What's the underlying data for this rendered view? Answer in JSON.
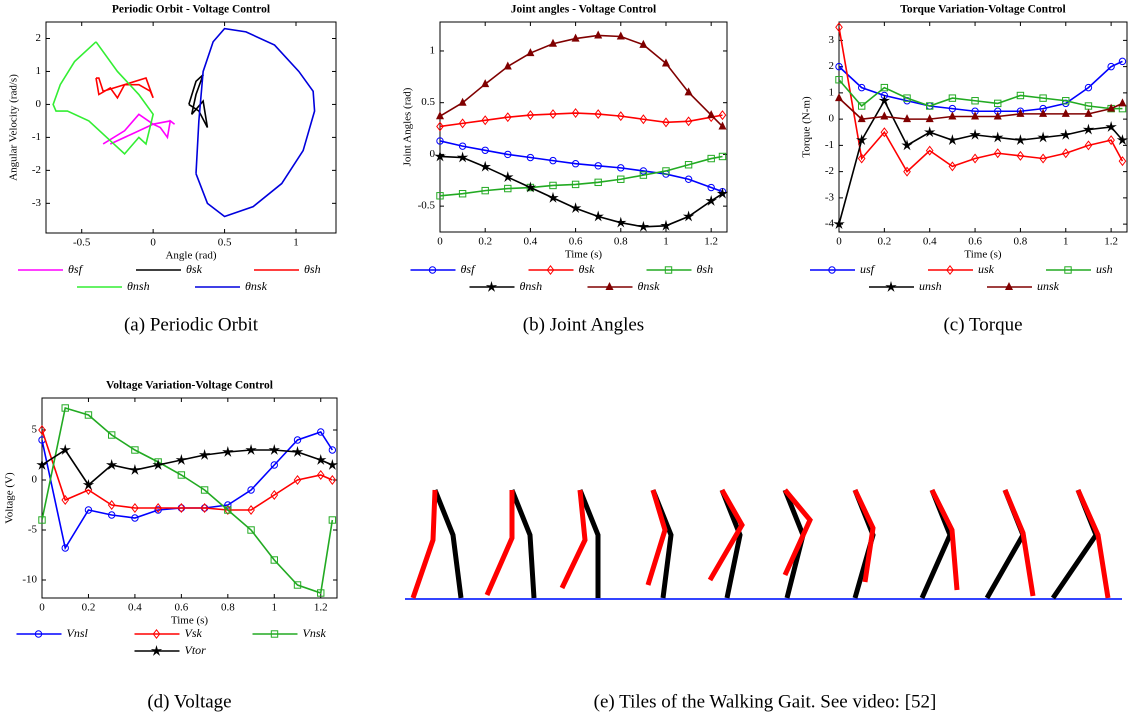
{
  "chart_data": [
    {
      "type": "line",
      "title": "Periodic Orbit - Voltage Control",
      "caption": "(a) Periodic Orbit",
      "xlabel": "Angle (rad)",
      "ylabel": "Angular Velocity (rad/s)",
      "xlim": [
        -0.75,
        1.28
      ],
      "ylim": [
        -3.9,
        2.5
      ],
      "xticks": [
        -0.5,
        0,
        0.5,
        1
      ],
      "yticks": [
        -3,
        -2,
        -1,
        0,
        1,
        2
      ],
      "series": [
        {
          "name": "θsf",
          "color": "#ff00ff",
          "x": [
            -0.35,
            -0.2,
            -0.1,
            0,
            0.05,
            0.1,
            0.12,
            0.15,
            0.12,
            0,
            -0.15,
            -0.3
          ],
          "values": [
            -1.2,
            -0.8,
            -0.3,
            -0.6,
            -0.7,
            -1.0,
            -0.5,
            -0.6,
            -0.5,
            -0.6,
            -0.9,
            -1.2
          ]
        },
        {
          "name": "θsk",
          "color": "#000000",
          "x": [
            0.25,
            0.3,
            0.35,
            0.3,
            0.27,
            0.35,
            0.38,
            0.32,
            0.25
          ],
          "values": [
            0.0,
            0.7,
            0.9,
            0.3,
            -0.3,
            0.1,
            -0.7,
            -0.2,
            0.0
          ]
        },
        {
          "name": "θsh",
          "color": "#ff0000",
          "x": [
            -0.4,
            -0.38,
            -0.3,
            -0.25,
            -0.2,
            -0.1,
            -0.02,
            0,
            -0.05,
            -0.2,
            -0.35,
            -0.38,
            -0.4
          ],
          "values": [
            0.8,
            0.3,
            0.5,
            0.2,
            0.6,
            0.6,
            0.4,
            0.2,
            0.8,
            0.6,
            0.4,
            0.8,
            0.8
          ]
        },
        {
          "name": "θnsh",
          "color": "#33ee33",
          "x": [
            -0.4,
            -0.55,
            -0.65,
            -0.7,
            -0.68,
            -0.6,
            -0.45,
            -0.3,
            -0.2,
            -0.1,
            -0.05,
            0,
            -0.1,
            -0.25,
            -0.4
          ],
          "values": [
            1.9,
            1.3,
            0.6,
            0.0,
            -0.2,
            -0.2,
            -0.5,
            -1.1,
            -1.5,
            -1.0,
            -1.2,
            -0.3,
            0.3,
            1.0,
            1.9
          ]
        },
        {
          "name": "θnsk",
          "color": "#0000dd",
          "x": [
            0.3,
            0.32,
            0.35,
            0.42,
            0.5,
            0.65,
            0.85,
            1.02,
            1.12,
            1.13,
            1.05,
            0.9,
            0.7,
            0.5,
            0.38,
            0.3
          ],
          "values": [
            -2.1,
            -0.5,
            1.0,
            1.9,
            2.3,
            2.2,
            1.8,
            1.0,
            0.4,
            -0.2,
            -1.4,
            -2.4,
            -3.1,
            -3.4,
            -3.0,
            -2.1
          ]
        }
      ]
    },
    {
      "type": "line",
      "title": "Joint angles - Voltage Control",
      "caption": "(b) Joint Angles",
      "xlabel": "Time (s)",
      "ylabel": "Joint Angles (rad)",
      "xlim": [
        0,
        1.27
      ],
      "ylim": [
        -0.75,
        1.28
      ],
      "xticks": [
        0,
        0.2,
        0.4,
        0.6,
        0.8,
        1,
        1.2
      ],
      "yticks": [
        -0.5,
        0,
        0.5,
        1
      ],
      "x": [
        0,
        0.1,
        0.2,
        0.3,
        0.4,
        0.5,
        0.6,
        0.7,
        0.8,
        0.9,
        1.0,
        1.1,
        1.2,
        1.25
      ],
      "series": [
        {
          "name": "θsf",
          "color": "#0000ff",
          "marker": "circle",
          "values": [
            0.13,
            0.08,
            0.04,
            0.0,
            -0.03,
            -0.06,
            -0.09,
            -0.11,
            -0.13,
            -0.16,
            -0.19,
            -0.24,
            -0.32,
            -0.36
          ]
        },
        {
          "name": "θsk",
          "color": "#ff0000",
          "marker": "diamond",
          "values": [
            0.27,
            0.3,
            0.33,
            0.36,
            0.38,
            0.39,
            0.4,
            0.39,
            0.37,
            0.34,
            0.31,
            0.32,
            0.36,
            0.38
          ]
        },
        {
          "name": "θsh",
          "color": "#22aa22",
          "marker": "square",
          "values": [
            -0.4,
            -0.38,
            -0.35,
            -0.33,
            -0.32,
            -0.3,
            -0.29,
            -0.27,
            -0.24,
            -0.2,
            -0.16,
            -0.1,
            -0.04,
            -0.02
          ]
        },
        {
          "name": "θnsh",
          "color": "#000000",
          "marker": "star",
          "values": [
            -0.02,
            -0.03,
            -0.12,
            -0.22,
            -0.32,
            -0.42,
            -0.52,
            -0.6,
            -0.66,
            -0.7,
            -0.69,
            -0.6,
            -0.45,
            -0.38
          ]
        },
        {
          "name": "θnsk",
          "color": "#800000",
          "marker": "triangle",
          "values": [
            0.37,
            0.5,
            0.68,
            0.85,
            0.98,
            1.07,
            1.12,
            1.15,
            1.14,
            1.06,
            0.88,
            0.6,
            0.38,
            0.27
          ]
        }
      ]
    },
    {
      "type": "line",
      "title": "Torque Variation-Voltage Control",
      "caption": "(c) Torque",
      "xlabel": "Time (s)",
      "ylabel": "Torque (N-m)",
      "xlim": [
        0,
        1.27
      ],
      "ylim": [
        -4.3,
        3.7
      ],
      "xticks": [
        0,
        0.2,
        0.4,
        0.6,
        0.8,
        1,
        1.2
      ],
      "yticks": [
        -4,
        -3,
        -2,
        -1,
        0,
        1,
        2,
        3
      ],
      "x": [
        0,
        0.1,
        0.2,
        0.3,
        0.4,
        0.5,
        0.6,
        0.7,
        0.8,
        0.9,
        1.0,
        1.1,
        1.2,
        1.25
      ],
      "series": [
        {
          "name": "usf",
          "color": "#0000ff",
          "marker": "circle",
          "values": [
            2.0,
            1.2,
            0.9,
            0.7,
            0.5,
            0.4,
            0.3,
            0.3,
            0.3,
            0.4,
            0.6,
            1.2,
            2.0,
            2.2
          ]
        },
        {
          "name": "usk",
          "color": "#ff0000",
          "marker": "diamond",
          "values": [
            3.5,
            -1.5,
            -0.5,
            -2.0,
            -1.2,
            -1.8,
            -1.5,
            -1.3,
            -1.4,
            -1.5,
            -1.3,
            -1.0,
            -0.8,
            -1.6
          ]
        },
        {
          "name": "ush",
          "color": "#22aa22",
          "marker": "square",
          "values": [
            1.5,
            0.5,
            1.2,
            0.8,
            0.5,
            0.8,
            0.7,
            0.6,
            0.9,
            0.8,
            0.7,
            0.5,
            0.4,
            0.4
          ]
        },
        {
          "name": "unsh",
          "color": "#000000",
          "marker": "star",
          "values": [
            -4.0,
            -0.8,
            0.7,
            -1.0,
            -0.5,
            -0.8,
            -0.6,
            -0.7,
            -0.8,
            -0.7,
            -0.6,
            -0.4,
            -0.3,
            -0.8
          ]
        },
        {
          "name": "unsk",
          "color": "#800000",
          "marker": "triangle",
          "values": [
            0.8,
            0.0,
            0.1,
            0.0,
            0.0,
            0.1,
            0.1,
            0.1,
            0.2,
            0.2,
            0.2,
            0.2,
            0.4,
            0.6
          ]
        }
      ]
    },
    {
      "type": "line",
      "title": "Voltage Variation-Voltage Control",
      "caption": "(d) Voltage",
      "xlabel": "Time (s)",
      "ylabel": "Voltage (V)",
      "xlim": [
        0,
        1.27
      ],
      "ylim": [
        -11.8,
        8.2
      ],
      "xticks": [
        0,
        0.2,
        0.4,
        0.6,
        0.8,
        1,
        1.2
      ],
      "yticks": [
        -10,
        -5,
        0,
        5
      ],
      "x": [
        0,
        0.1,
        0.2,
        0.3,
        0.4,
        0.5,
        0.6,
        0.7,
        0.8,
        0.9,
        1.0,
        1.1,
        1.2,
        1.25
      ],
      "series": [
        {
          "name": "Vnsl",
          "color": "#0000ff",
          "marker": "circle",
          "values": [
            4,
            -6.8,
            -3,
            -3.5,
            -3.8,
            -3,
            -2.8,
            -2.8,
            -2.5,
            -1,
            1.5,
            4,
            4.8,
            3
          ]
        },
        {
          "name": "Vsk",
          "color": "#ff0000",
          "marker": "diamond",
          "values": [
            5,
            -2,
            -1,
            -2.5,
            -2.8,
            -2.8,
            -2.8,
            -2.8,
            -3,
            -3,
            -1.5,
            0,
            0.5,
            0
          ]
        },
        {
          "name": "Vnsk",
          "color": "#22aa22",
          "marker": "square",
          "values": [
            -4,
            7.2,
            6.5,
            4.5,
            3,
            1.8,
            0.5,
            -1,
            -3,
            -5,
            -8,
            -10.5,
            -11.3,
            -4
          ]
        },
        {
          "name": "Vtor",
          "color": "#000000",
          "marker": "star",
          "values": [
            1.5,
            3,
            -0.5,
            1.5,
            1,
            1.5,
            2,
            2.5,
            2.8,
            3,
            3,
            2.8,
            2,
            1.5
          ]
        }
      ]
    }
  ],
  "gait_figure": {
    "caption": "(e) Tiles of the Walking Gait. See video: [52]"
  }
}
